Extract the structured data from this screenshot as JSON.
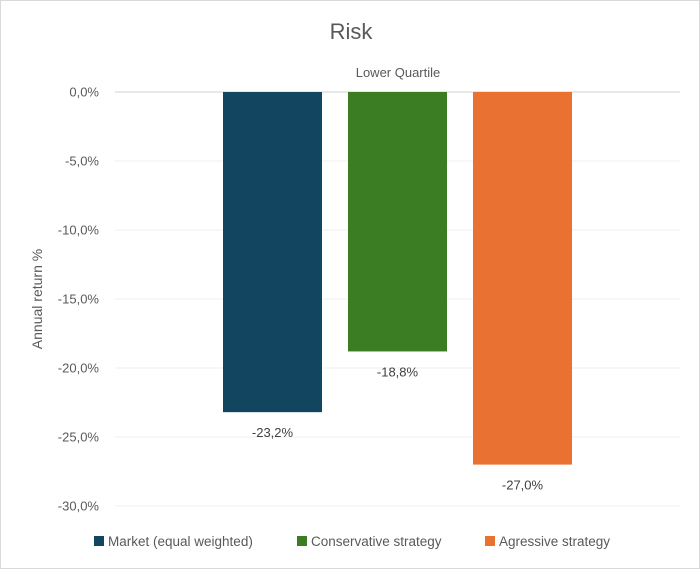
{
  "chart_data": {
    "type": "bar",
    "title": "Risk",
    "subtitle": "Lower Quartile",
    "xlabel": "",
    "ylabel": "Annual return %",
    "ylim": [
      -30,
      0
    ],
    "yticks": [
      0,
      -5,
      -10,
      -15,
      -20,
      -25,
      -30
    ],
    "ytick_labels": [
      "0,0%",
      "-5,0%",
      "-10,0%",
      "-15,0%",
      "-20,0%",
      "-25,0%",
      "-30,0%"
    ],
    "grid": true,
    "legend_position": "bottom",
    "categories": [
      "Lower Quartile"
    ],
    "series": [
      {
        "name": "Market (equal weighted)",
        "values": [
          -23.2
        ],
        "label": "-23,2%",
        "color": "#124660"
      },
      {
        "name": "Conservative strategy",
        "values": [
          -18.8
        ],
        "label": "-18,8%",
        "color": "#3a7d23"
      },
      {
        "name": "Agressive strategy",
        "values": [
          -27.0
        ],
        "label": "-27,0%",
        "color": "#e97132"
      }
    ]
  }
}
